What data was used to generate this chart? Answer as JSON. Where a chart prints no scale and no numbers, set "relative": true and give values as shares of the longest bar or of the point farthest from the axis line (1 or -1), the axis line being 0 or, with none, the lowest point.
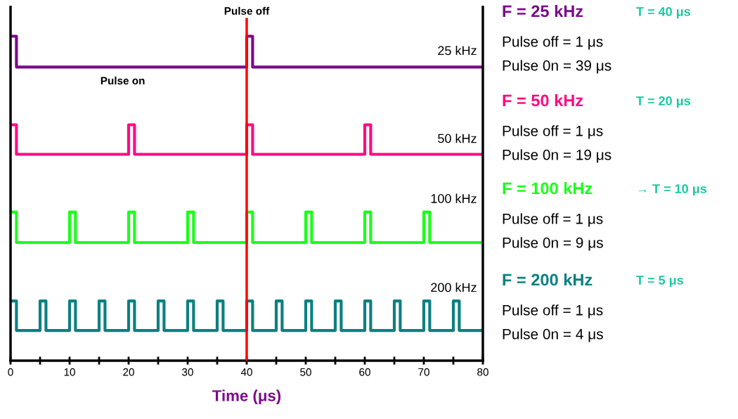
{
  "chart_data": {
    "type": "step",
    "relative": true,
    "xlabel": "Time (μs)",
    "xlim": [
      0,
      80
    ],
    "xticks": [
      0,
      {
        "value": 5,
        "label": null
      },
      10,
      {
        "value": 15,
        "label": null
      },
      20,
      {
        "value": 25,
        "label": null
      },
      30,
      {
        "value": 35,
        "label": null
      },
      40,
      {
        "value": 45,
        "label": null
      },
      50,
      {
        "value": 55,
        "label": null
      },
      60,
      {
        "value": 65,
        "label": null
      },
      70,
      {
        "value": 75,
        "label": null
      },
      80
    ],
    "grid": false,
    "legend": false,
    "line_style": "solid",
    "marker": "none",
    "ref_lines": [
      {
        "axis": "x",
        "value": 40,
        "color": "#ff0000"
      }
    ],
    "series": [
      {
        "name": "25 kHz",
        "color": "#7b0a8a",
        "x": [
          0,
          1,
          40,
          41,
          80
        ],
        "values": [
          1,
          0.905,
          1,
          0.905,
          0.905
        ]
      },
      {
        "name": "50 kHz",
        "color": "#ff0a84",
        "x": [
          0,
          1,
          20,
          21,
          40,
          41,
          60,
          61,
          80
        ],
        "values": [
          0.727,
          0.636,
          0.727,
          0.636,
          0.727,
          0.636,
          0.727,
          0.636,
          0.636
        ]
      },
      {
        "name": "100 kHz",
        "color": "#1aff1a",
        "x": [
          0,
          1,
          10,
          11,
          20,
          21,
          30,
          31,
          40,
          41,
          50,
          51,
          60,
          61,
          70,
          71,
          80
        ],
        "values": [
          0.458,
          0.364,
          0.458,
          0.364,
          0.458,
          0.364,
          0.458,
          0.364,
          0.458,
          0.364,
          0.458,
          0.364,
          0.458,
          0.364,
          0.458,
          0.364,
          0.364
        ]
      },
      {
        "name": "200 kHz",
        "color": "#0c8080",
        "x": [
          0,
          1,
          5,
          6,
          10,
          11,
          15,
          16,
          20,
          21,
          25,
          26,
          30,
          31,
          35,
          36,
          40,
          41,
          45,
          46,
          50,
          51,
          55,
          56,
          60,
          61,
          65,
          66,
          70,
          71,
          75,
          76,
          80
        ],
        "values": [
          0.184,
          0.093,
          0.184,
          0.093,
          0.184,
          0.093,
          0.184,
          0.093,
          0.184,
          0.093,
          0.184,
          0.093,
          0.184,
          0.093,
          0.184,
          0.093,
          0.184,
          0.093,
          0.184,
          0.093,
          0.184,
          0.093,
          0.184,
          0.093,
          0.184,
          0.093,
          0.184,
          0.093,
          0.184,
          0.093,
          0.184,
          0.093,
          0.093
        ]
      }
    ],
    "annotations": [
      "Pulse off",
      "Pulse on",
      "F = 25 kHz",
      "T = 40 μs",
      "Pulse off = 1 μs",
      "Pulse 0n = 39 μs",
      "F = 50 kHz",
      "T = 20 μs",
      "Pulse off = 1 μs",
      "Pulse 0n = 19 μs",
      "F = 100 kHz",
      "→ T = 10 μs",
      "Pulse off = 1 μs",
      "Pulse 0n = 9 μs",
      "F = 200 kHz",
      "T = 5 μs",
      "Pulse off = 1 μs",
      "Pulse 0n = 4 μs"
    ]
  }
}
